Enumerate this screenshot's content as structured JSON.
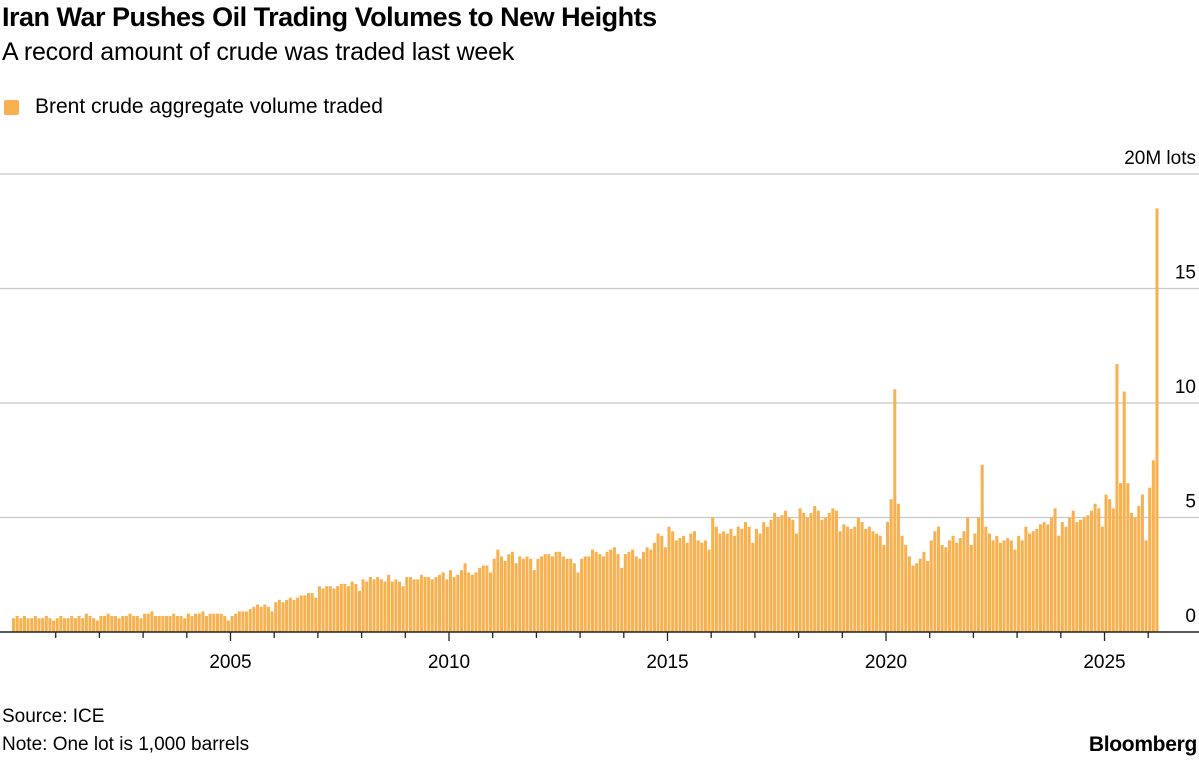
{
  "title": "Iran War Pushes Oil Trading Volumes to New Heights",
  "subtitle": "A record amount of crude was traded last week",
  "source": "Source: ICE",
  "note": "Note: One lot is 1,000 barrels",
  "brand": "Bloomberg",
  "chart_data": {
    "type": "bar",
    "title": "Iran War Pushes Oil Trading Volumes to New Heights",
    "subtitle": "A record amount of crude was traded last week",
    "series": [
      {
        "name": "Brent crude aggregate volume traded",
        "color": "#f9b04f"
      }
    ],
    "ylabel": "",
    "y_unit": "M lots",
    "ylim": [
      0,
      20
    ],
    "y_ticks": [
      {
        "value": 0,
        "label": "0"
      },
      {
        "value": 5,
        "label": "5"
      },
      {
        "value": 10,
        "label": "10"
      },
      {
        "value": 15,
        "label": "15"
      },
      {
        "value": 20,
        "label": "20M lots"
      }
    ],
    "x_ticks": [
      "2005",
      "2010",
      "2015",
      "2020",
      "2025"
    ],
    "xlim": [
      "2000-01",
      "2026-03"
    ],
    "grid": true,
    "legend_position": "top-left",
    "values_by_year_month": {
      "2000": [
        0.6,
        0.7,
        0.6,
        0.7,
        0.6,
        0.6,
        0.7,
        0.6,
        0.6,
        0.7,
        0.6,
        0.5
      ],
      "2001": [
        0.6,
        0.7,
        0.6,
        0.6,
        0.7,
        0.6,
        0.7,
        0.6,
        0.8,
        0.7,
        0.6,
        0.5
      ],
      "2002": [
        0.7,
        0.7,
        0.8,
        0.7,
        0.7,
        0.6,
        0.7,
        0.7,
        0.8,
        0.7,
        0.7,
        0.6
      ],
      "2003": [
        0.8,
        0.8,
        0.9,
        0.7,
        0.7,
        0.7,
        0.7,
        0.7,
        0.8,
        0.7,
        0.7,
        0.6
      ],
      "2004": [
        0.8,
        0.7,
        0.8,
        0.8,
        0.9,
        0.7,
        0.8,
        0.8,
        0.8,
        0.8,
        0.7,
        0.5
      ],
      "2005": [
        0.7,
        0.8,
        0.9,
        0.9,
        0.9,
        1.0,
        1.1,
        1.2,
        1.1,
        1.2,
        1.1,
        0.9
      ],
      "2006": [
        1.3,
        1.4,
        1.3,
        1.4,
        1.5,
        1.4,
        1.5,
        1.6,
        1.6,
        1.7,
        1.7,
        1.5
      ],
      "2007": [
        2.0,
        1.9,
        2.0,
        2.0,
        1.9,
        2.0,
        2.1,
        2.1,
        2.0,
        2.2,
        2.1,
        1.8
      ],
      "2008": [
        2.3,
        2.2,
        2.4,
        2.3,
        2.4,
        2.3,
        2.2,
        2.5,
        2.2,
        2.3,
        2.2,
        2.0
      ],
      "2009": [
        2.4,
        2.4,
        2.3,
        2.3,
        2.5,
        2.4,
        2.4,
        2.3,
        2.4,
        2.5,
        2.6,
        2.3
      ],
      "2010": [
        2.7,
        2.4,
        2.5,
        2.7,
        3.0,
        2.6,
        2.5,
        2.6,
        2.8,
        2.9,
        2.9,
        2.6
      ],
      "2011": [
        3.2,
        3.6,
        3.3,
        3.1,
        3.4,
        3.5,
        3.0,
        3.3,
        3.2,
        3.3,
        3.2,
        2.7
      ],
      "2012": [
        3.2,
        3.3,
        3.4,
        3.4,
        3.3,
        3.5,
        3.5,
        3.3,
        3.2,
        3.2,
        3.0,
        2.6
      ],
      "2013": [
        3.2,
        3.3,
        3.3,
        3.6,
        3.5,
        3.4,
        3.3,
        3.5,
        3.6,
        3.7,
        3.4,
        2.8
      ],
      "2014": [
        3.4,
        3.5,
        3.6,
        3.3,
        3.2,
        3.5,
        3.7,
        3.6,
        3.9,
        4.3,
        4.2,
        3.7
      ],
      "2015": [
        4.6,
        4.4,
        4.0,
        4.1,
        4.2,
        3.9,
        4.3,
        4.4,
        4.0,
        3.9,
        4.0,
        3.6
      ],
      "2016": [
        5.0,
        4.6,
        4.3,
        4.4,
        4.3,
        4.5,
        4.2,
        4.6,
        4.5,
        4.8,
        4.6,
        3.9
      ],
      "2017": [
        4.5,
        4.3,
        4.8,
        4.6,
        4.9,
        5.2,
        5.0,
        5.1,
        5.3,
        5.0,
        4.9,
        4.3
      ],
      "2018": [
        5.4,
        5.2,
        5.0,
        5.2,
        5.5,
        5.3,
        4.9,
        5.0,
        5.2,
        5.4,
        5.3,
        4.4
      ],
      "2019": [
        4.7,
        4.6,
        4.5,
        4.6,
        5.0,
        4.8,
        4.5,
        4.6,
        4.4,
        4.3,
        4.2,
        3.8
      ],
      "2020": [
        4.8,
        5.8,
        10.6,
        5.6,
        4.2,
        3.8,
        3.3,
        2.9,
        3.0,
        3.2,
        3.5,
        3.1
      ],
      "2021": [
        4.0,
        4.4,
        4.6,
        3.8,
        3.7,
        4.0,
        4.2,
        3.9,
        4.1,
        4.4,
        5.0,
        3.8
      ],
      "2022": [
        4.3,
        5.0,
        7.3,
        4.6,
        4.3,
        4.0,
        4.2,
        3.9,
        4.0,
        4.1,
        4.0,
        3.6
      ],
      "2023": [
        4.2,
        4.0,
        4.6,
        4.3,
        4.4,
        4.5,
        4.7,
        4.8,
        4.7,
        5.0,
        5.4,
        4.2
      ],
      "2024": [
        4.8,
        4.6,
        5.0,
        5.3,
        4.8,
        4.9,
        5.0,
        5.1,
        5.3,
        5.6,
        5.4,
        4.6
      ],
      "2025": [
        6.0,
        5.8,
        5.4,
        11.7,
        6.5,
        10.5,
        6.5,
        5.2,
        5.0,
        5.5,
        6.0,
        4.0
      ],
      "2026": [
        6.3,
        7.5,
        18.5
      ]
    }
  }
}
